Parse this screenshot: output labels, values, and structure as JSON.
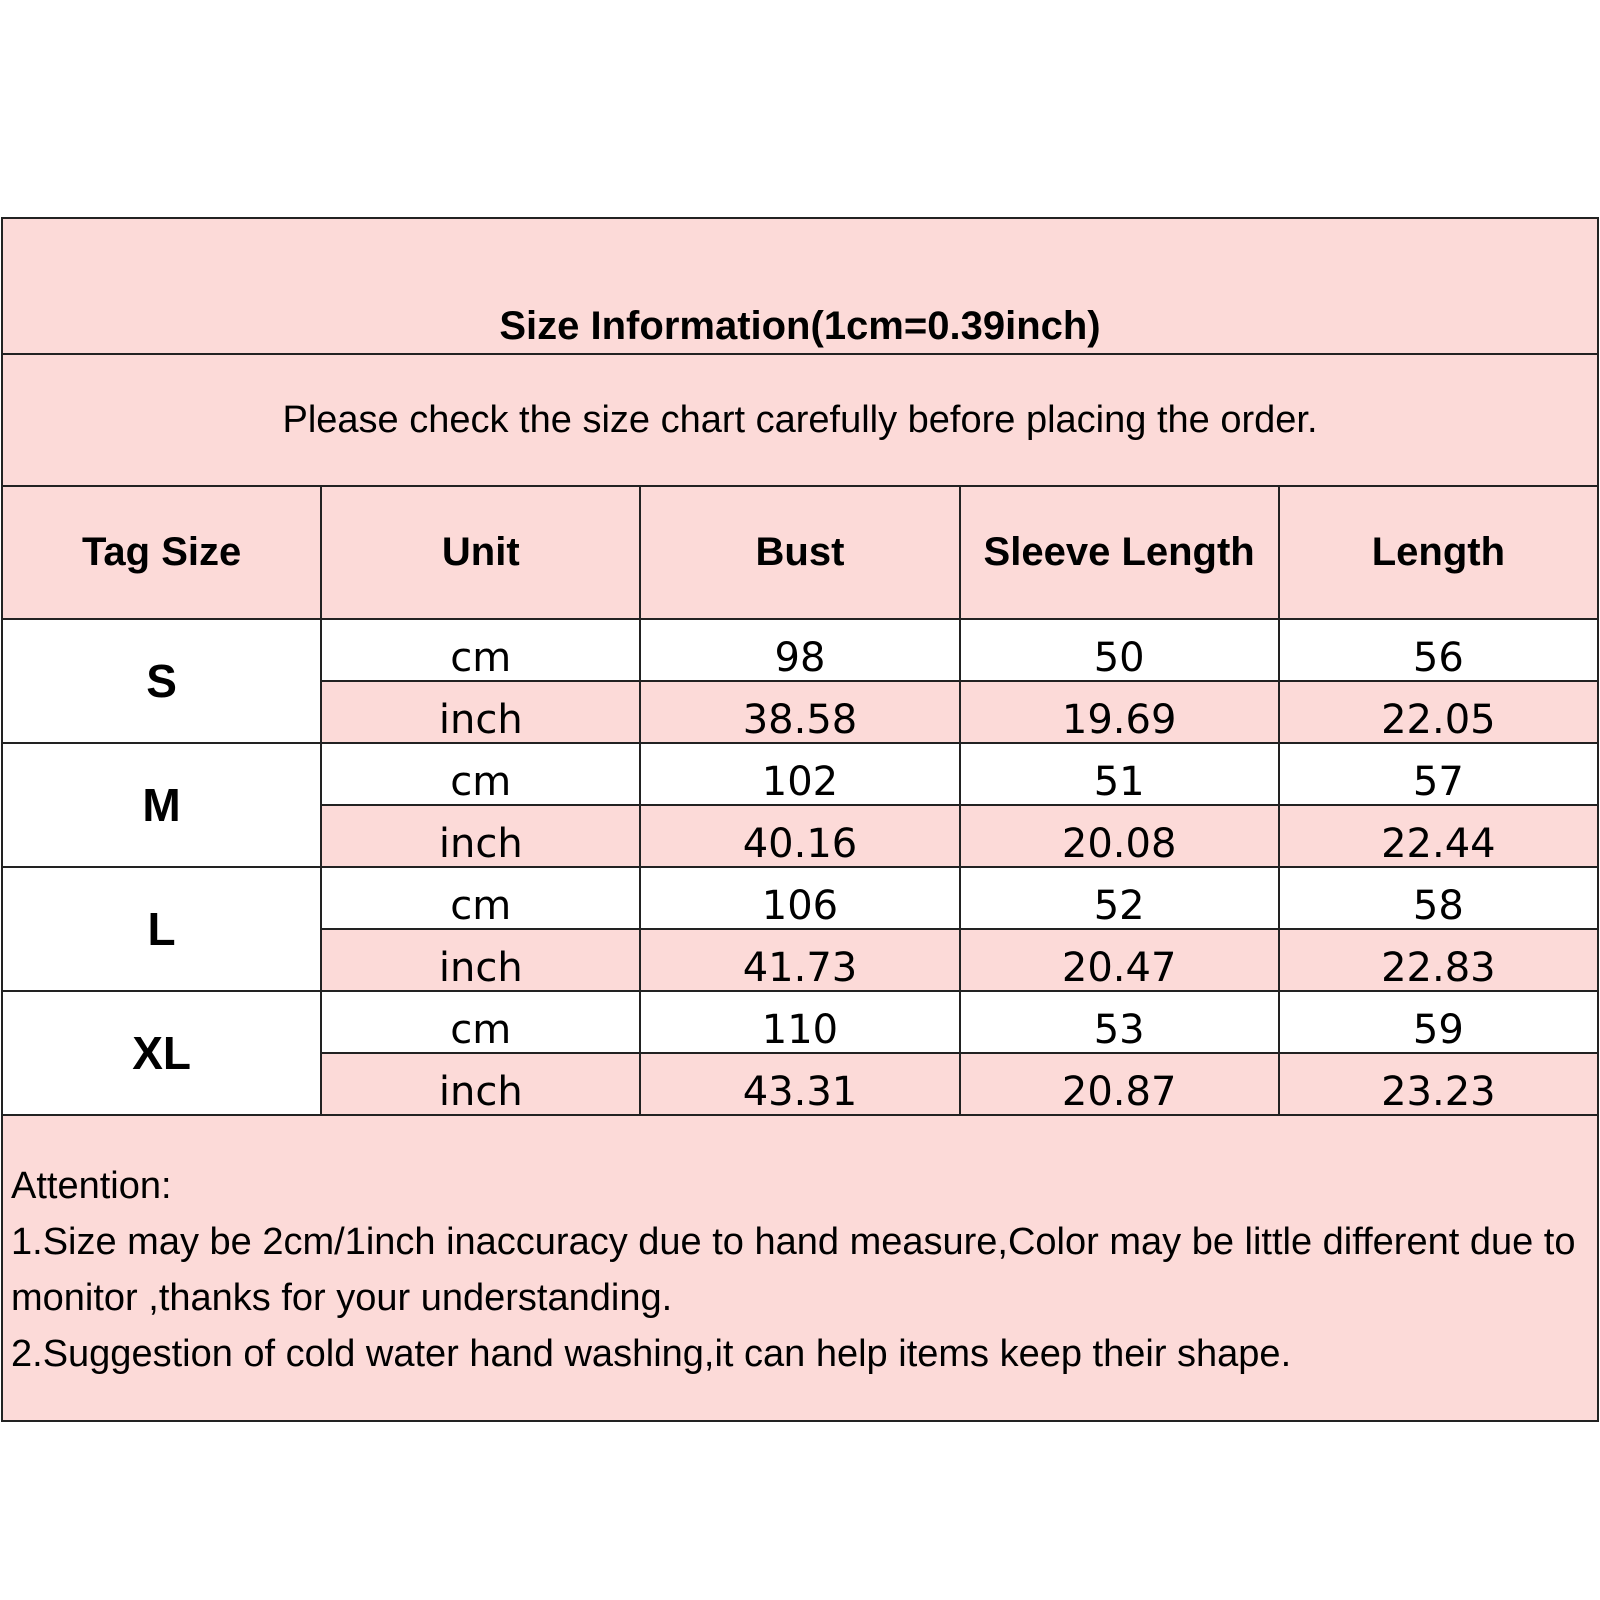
{
  "title": "Size Information(1cm=0.39inch)",
  "subtitle": "Please check the size chart carefully before placing the order.",
  "colors": {
    "header_bg": "#fcdad8",
    "row_bg": "#ffffff",
    "border": "#222222"
  },
  "headers": [
    "Tag Size",
    "Unit",
    "Bust",
    "Sleeve Length",
    "Length"
  ],
  "rows": [
    {
      "size": "S",
      "cm": {
        "unit": "cm",
        "bust": "98",
        "sleeve": "50",
        "length": "56"
      },
      "inch": {
        "unit": "inch",
        "bust": "38.58",
        "sleeve": "19.69",
        "length": "22.05"
      }
    },
    {
      "size": "M",
      "cm": {
        "unit": "cm",
        "bust": "102",
        "sleeve": "51",
        "length": "57"
      },
      "inch": {
        "unit": "inch",
        "bust": "40.16",
        "sleeve": "20.08",
        "length": "22.44"
      }
    },
    {
      "size": "L",
      "cm": {
        "unit": "cm",
        "bust": "106",
        "sleeve": "52",
        "length": "58"
      },
      "inch": {
        "unit": "inch",
        "bust": "41.73",
        "sleeve": "20.47",
        "length": "22.83"
      }
    },
    {
      "size": "XL",
      "cm": {
        "unit": "cm",
        "bust": "110",
        "sleeve": "53",
        "length": "59"
      },
      "inch": {
        "unit": "inch",
        "bust": "43.31",
        "sleeve": "20.87",
        "length": "23.23"
      }
    }
  ],
  "attention": {
    "heading": "Attention:",
    "lines": [
      "1.Size may be 2cm/1inch inaccuracy due to hand measure,Color may be little different due to monitor ,thanks for your understanding.",
      "2.Suggestion of cold water hand washing,it can help items keep their shape."
    ]
  }
}
